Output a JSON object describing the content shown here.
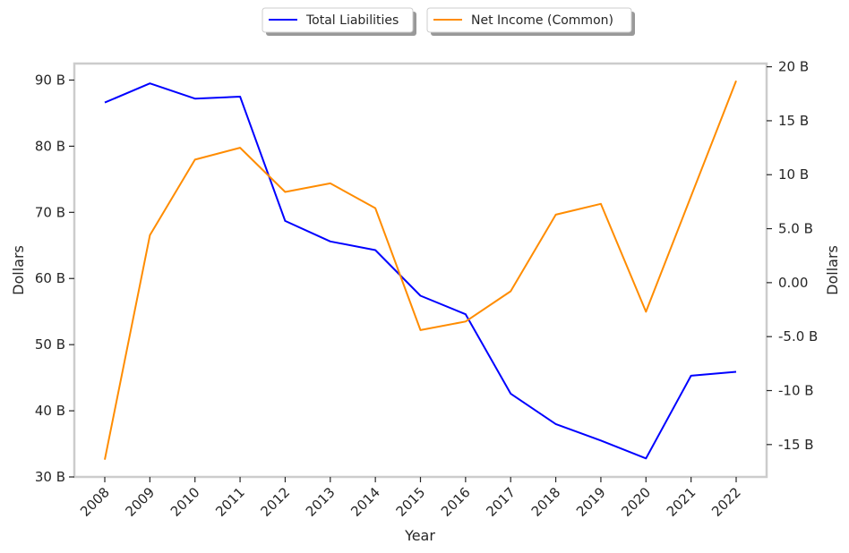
{
  "chart_data": {
    "type": "line",
    "title": "",
    "xlabel": "Year",
    "ylabel_left": "Dollars",
    "ylabel_right": "Dollars",
    "categories": [
      "2008",
      "2009",
      "2010",
      "2011",
      "2012",
      "2013",
      "2014",
      "2015",
      "2016",
      "2017",
      "2018",
      "2019",
      "2020",
      "2021",
      "2022"
    ],
    "ylim_left": [
      30,
      92.5
    ],
    "ylim_right": [
      -18,
      20.3
    ],
    "yticks_left": [
      {
        "v": 30,
        "label": "30 B"
      },
      {
        "v": 40,
        "label": "40 B"
      },
      {
        "v": 50,
        "label": "50 B"
      },
      {
        "v": 60,
        "label": "60 B"
      },
      {
        "v": 70,
        "label": "70 B"
      },
      {
        "v": 80,
        "label": "80 B"
      },
      {
        "v": 90,
        "label": "90 B"
      }
    ],
    "yticks_right": [
      {
        "v": -15,
        "label": "-15 B"
      },
      {
        "v": -10,
        "label": "-10 B"
      },
      {
        "v": -5,
        "label": "-5.0 B"
      },
      {
        "v": 0,
        "label": "0.00"
      },
      {
        "v": 5,
        "label": "5.0 B"
      },
      {
        "v": 10,
        "label": "10 B"
      },
      {
        "v": 15,
        "label": "15 B"
      },
      {
        "v": 20,
        "label": "20 B"
      }
    ],
    "grid": false,
    "legend_position": "top-center",
    "series": [
      {
        "name": "Total Liabilities",
        "axis": "left",
        "color": "#0000ff",
        "values": [
          86.6,
          89.5,
          87.2,
          87.5,
          68.7,
          65.6,
          64.3,
          57.4,
          54.6,
          42.6,
          38.0,
          35.5,
          32.8,
          45.3,
          45.9
        ]
      },
      {
        "name": "Net Income (Common)",
        "axis": "right",
        "color": "#ff8c00",
        "values": [
          -16.4,
          4.4,
          11.4,
          12.5,
          8.4,
          9.2,
          6.9,
          -4.4,
          -3.6,
          -0.8,
          6.3,
          7.3,
          -2.7,
          8.0,
          18.7
        ]
      }
    ]
  }
}
